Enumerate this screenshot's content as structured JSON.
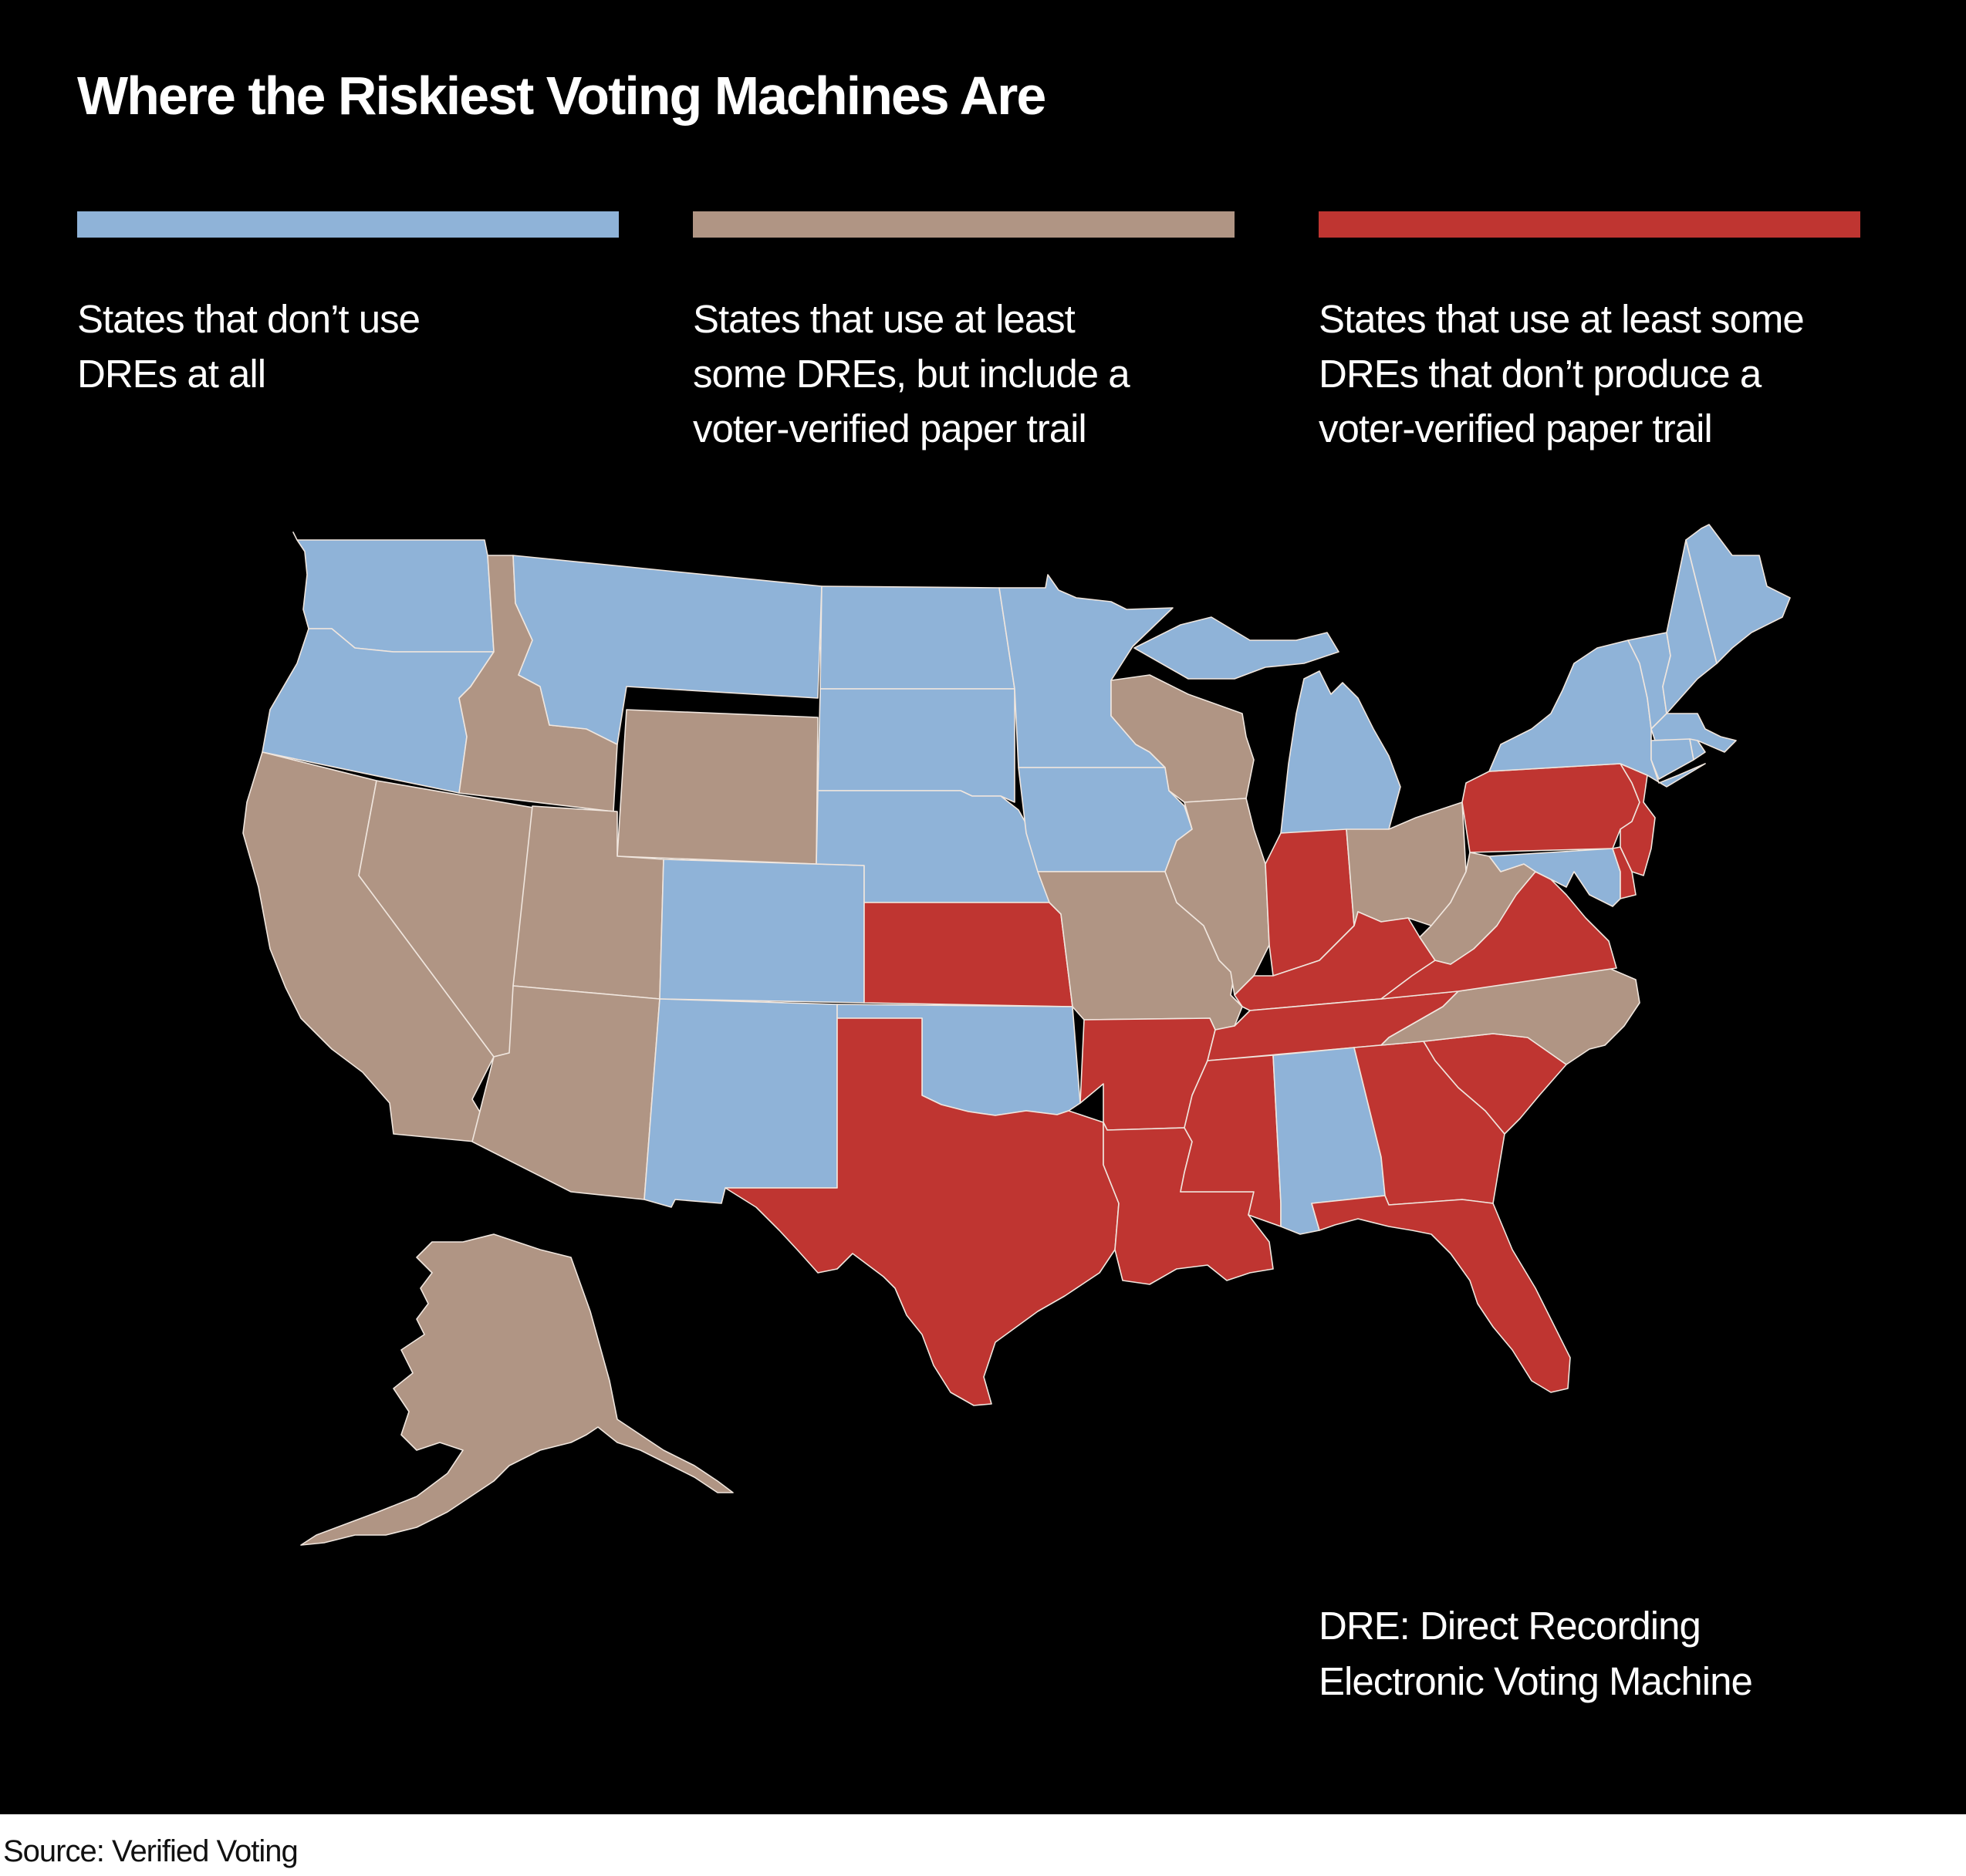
{
  "title": "Where the Riskiest Voting Machines Are",
  "colors": {
    "no_dre": "#8fb3d8",
    "dre_with_paper": "#b09584",
    "dre_no_paper": "#bf3531",
    "background": "#000000",
    "border": "#f0e6de"
  },
  "legend": [
    {
      "key": "no_dre",
      "lines": [
        "States that don’t use",
        "DREs at all"
      ]
    },
    {
      "key": "dre_with_paper",
      "lines": [
        "States that use at least",
        "some DREs, but include a",
        "voter-verified paper trail"
      ]
    },
    {
      "key": "dre_no_paper",
      "lines": [
        "States that use at least some",
        "DREs that don’t  produce a",
        "voter-verified paper trail"
      ]
    }
  ],
  "note": [
    "DRE: Direct Recording",
    "Electronic Voting Machine"
  ],
  "source": "Source: Verified Voting",
  "map_data": {
    "type": "choropleth",
    "categories": {
      "no_dre": [
        "WA",
        "OR",
        "MT",
        "ND",
        "SD",
        "MN",
        "NE",
        "IA",
        "CO",
        "NM",
        "OK",
        "MI",
        "AL",
        "NY",
        "VT",
        "NH",
        "ME",
        "MA",
        "CT",
        "RI",
        "MD"
      ],
      "dre_with_paper": [
        "CA",
        "NV",
        "ID",
        "UT",
        "AZ",
        "WY",
        "AK",
        "WI",
        "IL",
        "MO",
        "OH",
        "WV",
        "NC"
      ],
      "dre_no_paper": [
        "TX",
        "KS",
        "AR",
        "LA",
        "MS",
        "TN",
        "KY",
        "IN",
        "GA",
        "SC",
        "FL",
        "VA",
        "PA",
        "NJ",
        "DE"
      ]
    }
  }
}
